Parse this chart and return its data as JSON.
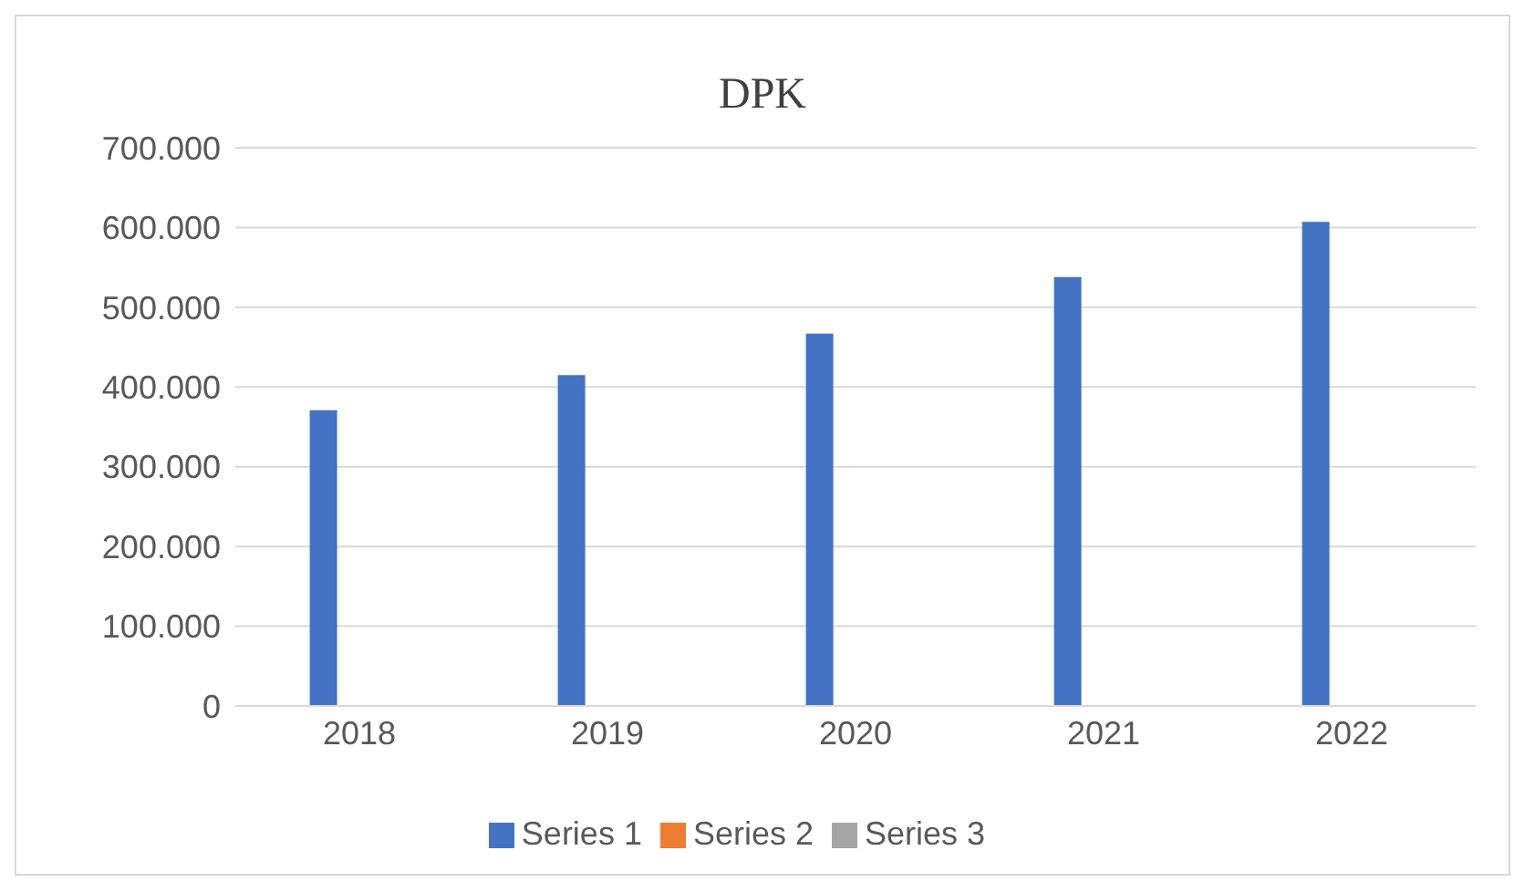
{
  "chart_data": {
    "type": "bar",
    "title": "DPK",
    "categories": [
      "2018",
      "2019",
      "2020",
      "2021",
      "2022"
    ],
    "series": [
      {
        "name": "Series 1",
        "color": "#4472c4",
        "values": [
          371000,
          415000,
          467000,
          538000,
          607000
        ]
      },
      {
        "name": "Series 2",
        "color": "#ed7d31",
        "values": [
          null,
          null,
          null,
          null,
          null
        ]
      },
      {
        "name": "Series 3",
        "color": "#a5a5a5",
        "values": [
          null,
          null,
          null,
          null,
          null
        ]
      }
    ],
    "ylim": [
      0,
      700000
    ],
    "yticks": [
      {
        "value": 0,
        "label": "0"
      },
      {
        "value": 100000,
        "label": "100.000"
      },
      {
        "value": 200000,
        "label": "200.000"
      },
      {
        "value": 300000,
        "label": "300.000"
      },
      {
        "value": 400000,
        "label": "400.000"
      },
      {
        "value": 500000,
        "label": "500.000"
      },
      {
        "value": 600000,
        "label": "600.000"
      },
      {
        "value": 700000,
        "label": "700.000"
      }
    ],
    "grid": "y",
    "legend": "bottom"
  }
}
